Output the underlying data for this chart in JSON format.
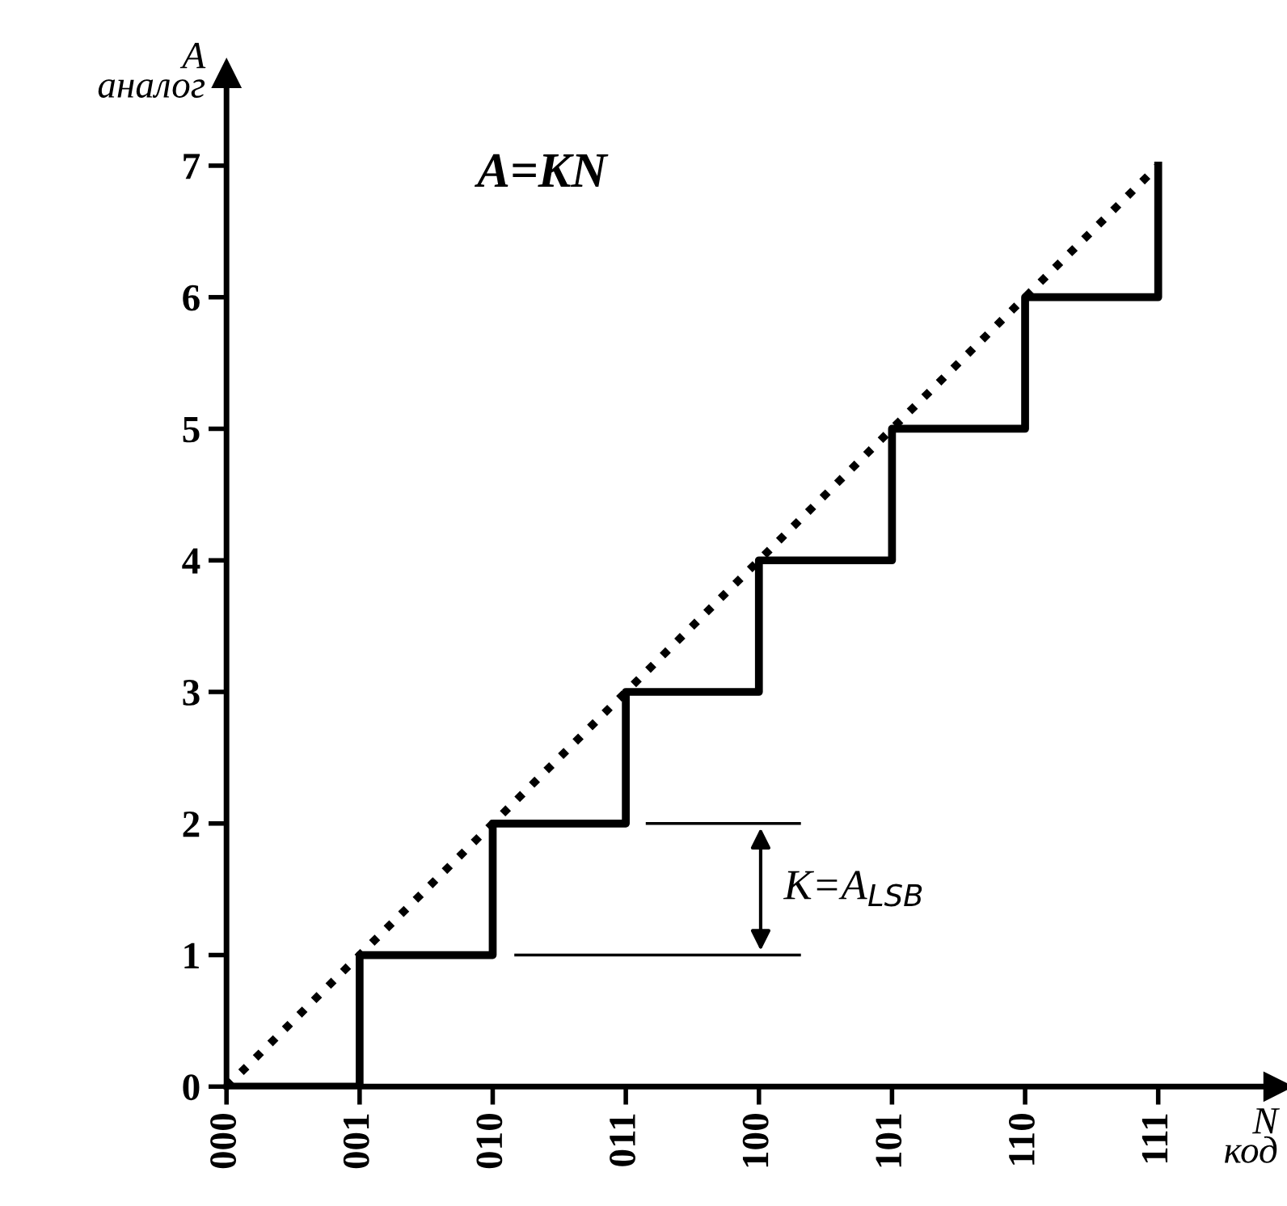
{
  "chart_data": {
    "type": "step",
    "categories": [
      "000",
      "001",
      "010",
      "011",
      "100",
      "101",
      "110",
      "111"
    ],
    "series": [
      {
        "color": "#000000",
        "line_style": "solid",
        "values": [
          0,
          1,
          2,
          3,
          4,
          5,
          6,
          7
        ]
      },
      {
        "type": "line",
        "color": "#000000",
        "line_style": "dotted",
        "values": [
          0,
          1,
          2,
          3,
          4,
          5,
          6,
          7
        ]
      }
    ],
    "xlabel": "N\nкод",
    "ylabel": "A\nаналог",
    "ylim": [
      0,
      7.7
    ],
    "yticks": [
      0,
      1,
      2,
      3,
      4,
      5,
      6,
      7
    ],
    "annotations": [
      "A=KN",
      "K=A$_{LSB}$"
    ],
    "grid": false,
    "legend": false
  }
}
